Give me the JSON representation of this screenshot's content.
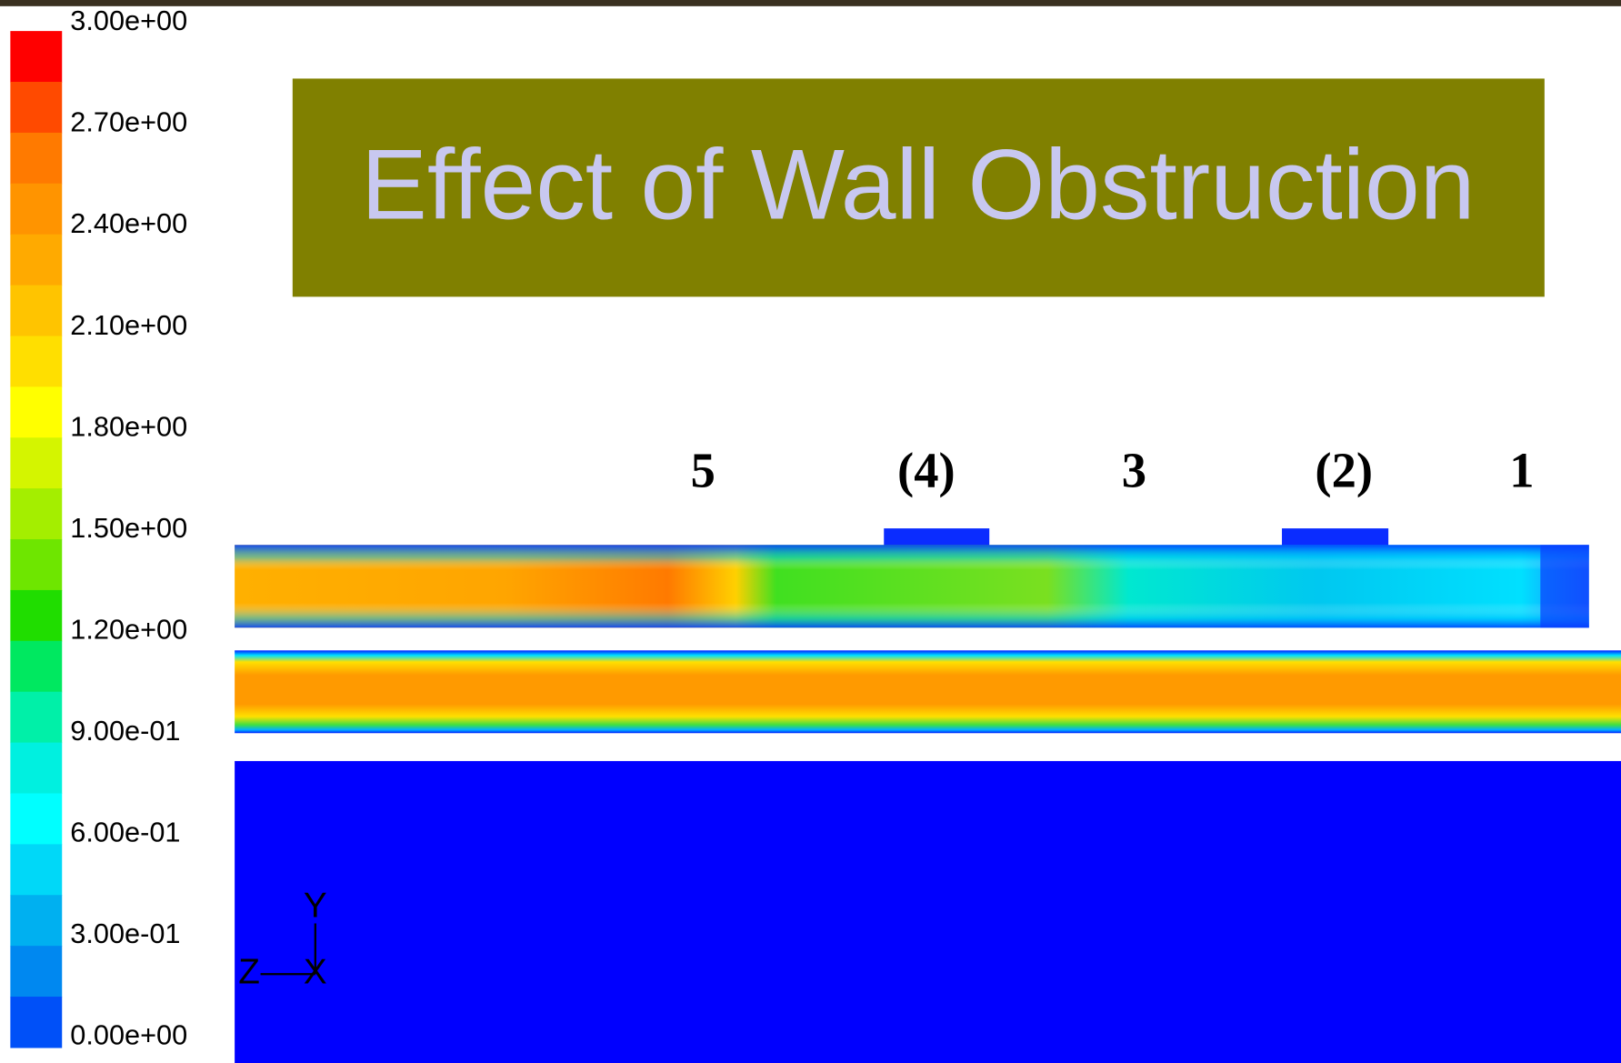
{
  "title": "Effect of Wall Obstruction",
  "colorbar": {
    "labels": [
      "3.00e+00",
      "2.70e+00",
      "2.40e+00",
      "2.10e+00",
      "1.80e+00",
      "1.50e+00",
      "1.20e+00",
      "9.00e-01",
      "6.00e-01",
      "3.00e-01",
      "0.00e+00"
    ]
  },
  "stations": [
    "5",
    "(4)",
    "3",
    "(2)",
    "1"
  ],
  "axes": {
    "y": "Y",
    "z": "Z",
    "x": "X"
  }
}
